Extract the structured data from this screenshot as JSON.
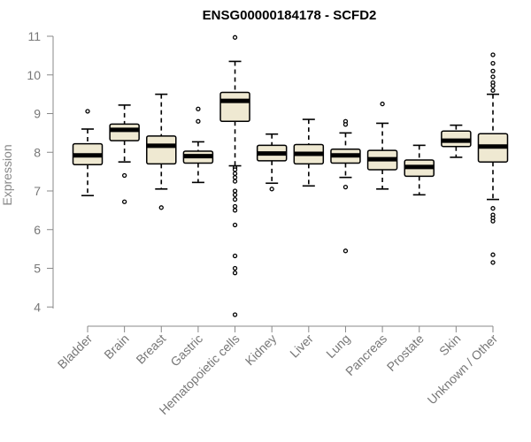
{
  "chart_data": {
    "type": "box",
    "title": "ENSG00000184178 - SCFD2",
    "ylabel": "Expression",
    "ylim": [
      3.8,
      11.0
    ],
    "yticks": [
      4,
      5,
      6,
      7,
      8,
      9,
      10,
      11
    ],
    "box_fill": "#efe9d2",
    "categories": [
      "Bladder",
      "Brain",
      "Breast",
      "Gastric",
      "Hematopoietic cells",
      "Kidney",
      "Liver",
      "Lung",
      "Pancreas",
      "Prostate",
      "Skin",
      "Unknown / Other"
    ],
    "boxes": [
      {
        "min": 6.88,
        "q1": 7.68,
        "median": 7.92,
        "q3": 8.22,
        "max": 8.6,
        "outliers": [
          9.06
        ]
      },
      {
        "min": 7.75,
        "q1": 8.3,
        "median": 8.58,
        "q3": 8.73,
        "max": 9.22,
        "outliers": [
          7.4,
          6.72
        ]
      },
      {
        "min": 7.05,
        "q1": 7.7,
        "median": 8.17,
        "q3": 8.42,
        "max": 9.5,
        "outliers": [
          6.57
        ]
      },
      {
        "min": 7.22,
        "q1": 7.72,
        "median": 7.9,
        "q3": 8.03,
        "max": 8.27,
        "outliers": [
          9.12,
          8.8
        ]
      },
      {
        "min": 7.65,
        "q1": 8.8,
        "median": 9.33,
        "q3": 9.55,
        "max": 10.35,
        "outliers": [
          10.97,
          7.6,
          7.55,
          7.45,
          7.35,
          7.25,
          7.0,
          6.9,
          6.78,
          6.6,
          6.5,
          6.12,
          5.32,
          5.0,
          4.88,
          3.8
        ]
      },
      {
        "min": 7.2,
        "q1": 7.78,
        "median": 7.97,
        "q3": 8.18,
        "max": 8.47,
        "outliers": [
          7.05
        ]
      },
      {
        "min": 7.13,
        "q1": 7.7,
        "median": 7.96,
        "q3": 8.2,
        "max": 8.85,
        "outliers": []
      },
      {
        "min": 7.35,
        "q1": 7.72,
        "median": 7.92,
        "q3": 8.08,
        "max": 8.5,
        "outliers": [
          8.8,
          8.72,
          7.1,
          5.45
        ]
      },
      {
        "min": 7.05,
        "q1": 7.55,
        "median": 7.82,
        "q3": 8.05,
        "max": 8.75,
        "outliers": [
          9.25
        ]
      },
      {
        "min": 6.9,
        "q1": 7.38,
        "median": 7.62,
        "q3": 7.8,
        "max": 8.18,
        "outliers": []
      },
      {
        "min": 7.87,
        "q1": 8.15,
        "median": 8.3,
        "q3": 8.55,
        "max": 8.7,
        "outliers": []
      },
      {
        "min": 6.78,
        "q1": 7.75,
        "median": 8.15,
        "q3": 8.48,
        "max": 9.5,
        "outliers": [
          10.52,
          10.3,
          10.1,
          9.95,
          9.8,
          9.72,
          9.6,
          6.55,
          6.38,
          6.3,
          6.22,
          5.35,
          5.15
        ]
      }
    ]
  }
}
